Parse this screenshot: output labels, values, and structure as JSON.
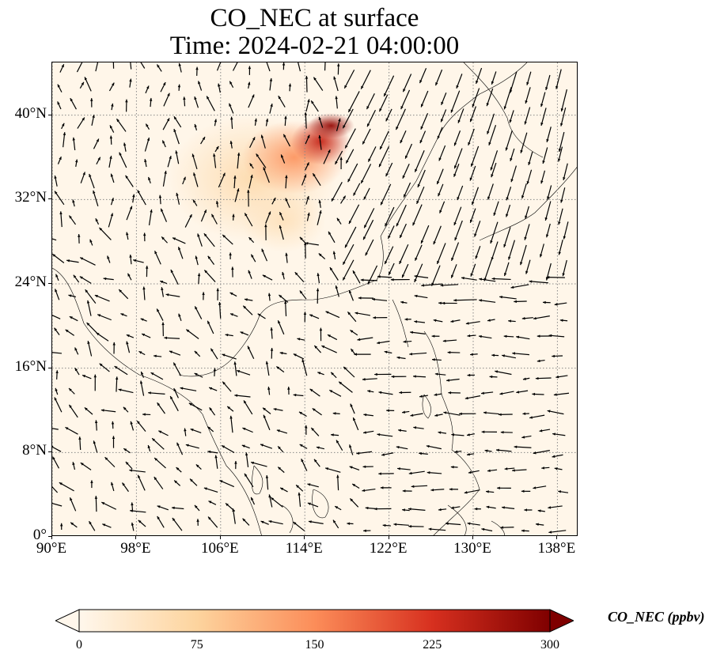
{
  "title_line1": "CO_NEC at surface",
  "title_line2": "Time: 2024-02-21 04:00:00",
  "map": {
    "lon_range": [
      90,
      140
    ],
    "lat_range": [
      0,
      45
    ],
    "lon_ticks": [
      {
        "value": 90,
        "label": "90°E"
      },
      {
        "value": 98,
        "label": "98°E"
      },
      {
        "value": 106,
        "label": "106°E"
      },
      {
        "value": 114,
        "label": "114°E"
      },
      {
        "value": 122,
        "label": "122°E"
      },
      {
        "value": 130,
        "label": "130°E"
      },
      {
        "value": 138,
        "label": "138°E"
      }
    ],
    "lat_ticks": [
      {
        "value": 0,
        "label": "0°"
      },
      {
        "value": 8,
        "label": "8°N"
      },
      {
        "value": 16,
        "label": "16°N"
      },
      {
        "value": 24,
        "label": "24°N"
      },
      {
        "value": 32,
        "label": "32°N"
      },
      {
        "value": 40,
        "label": "40°N"
      }
    ],
    "gridlines": "dotted",
    "vector_field": "wind arrows",
    "colors": {
      "ocean": "#fff6e9",
      "land_outline": "#000000",
      "grid": "#888888",
      "arrow": "#000000"
    }
  },
  "colorbar": {
    "label": "CO_NEC (ppbv)",
    "min": 0,
    "max": 300,
    "extend": "both",
    "cmap": "OrRd",
    "ticks": [
      {
        "value": 0,
        "label": "0"
      },
      {
        "value": 75,
        "label": "75"
      },
      {
        "value": 150,
        "label": "150"
      },
      {
        "value": 225,
        "label": "225"
      },
      {
        "value": 300,
        "label": "300"
      }
    ],
    "colors": [
      "#fff7ec",
      "#fdd49e",
      "#fc8d59",
      "#d7301f",
      "#7f0000"
    ]
  },
  "plumes": [
    {
      "lon": 109,
      "lat": 34,
      "rlon": 8,
      "rlat": 6,
      "value": 60
    },
    {
      "lon": 113,
      "lat": 36,
      "rlon": 5,
      "rlat": 3.5,
      "value": 140
    },
    {
      "lon": 115.5,
      "lat": 37.5,
      "rlon": 2.8,
      "rlat": 2.2,
      "value": 240
    },
    {
      "lon": 116.5,
      "lat": 39,
      "rlon": 2.2,
      "rlat": 1.2,
      "value": 280
    },
    {
      "lon": 112,
      "lat": 30,
      "rlon": 4,
      "rlat": 3,
      "value": 45
    }
  ]
}
